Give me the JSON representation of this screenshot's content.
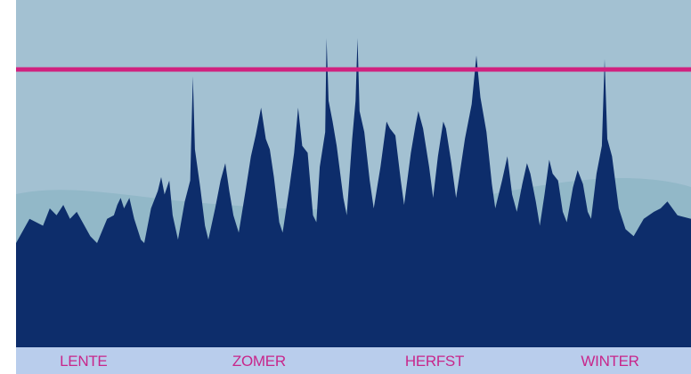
{
  "colors": {
    "sky": "#a3c1d2",
    "hills": "#92b8c8",
    "area": "#0d2d6b",
    "threshold": "#d0217f",
    "season_bar": "#b9cdec",
    "season_text": "#c8268b"
  },
  "chart_data": {
    "type": "area",
    "x_domain": [
      0,
      100
    ],
    "y_domain": [
      0,
      100
    ],
    "categories": [
      "LENTE",
      "ZOMER",
      "HERFST",
      "WINTER"
    ],
    "category_positions": [
      10,
      36,
      62,
      88
    ],
    "threshold": 80,
    "grid": false,
    "legend": "none",
    "series": [
      {
        "points": [
          [
            0,
            30
          ],
          [
            2,
            37
          ],
          [
            4,
            35
          ],
          [
            5,
            40
          ],
          [
            6,
            38
          ],
          [
            7,
            41
          ],
          [
            8,
            37
          ],
          [
            9,
            39
          ],
          [
            11,
            32
          ],
          [
            12,
            30
          ],
          [
            13.5,
            37
          ],
          [
            14.5,
            38
          ],
          [
            15,
            41
          ],
          [
            15.5,
            43
          ],
          [
            16,
            40
          ],
          [
            16.8,
            43
          ],
          [
            17.5,
            37
          ],
          [
            18.5,
            31
          ],
          [
            19,
            30
          ],
          [
            20,
            40
          ],
          [
            21,
            45
          ],
          [
            21.5,
            49
          ],
          [
            22,
            44
          ],
          [
            22.7,
            48
          ],
          [
            23.2,
            38
          ],
          [
            24,
            31
          ],
          [
            25,
            42
          ],
          [
            25.8,
            48
          ],
          [
            26.2,
            78
          ],
          [
            26.5,
            57
          ],
          [
            27.3,
            46
          ],
          [
            28,
            35
          ],
          [
            28.5,
            31
          ],
          [
            29.5,
            40
          ],
          [
            30.3,
            48
          ],
          [
            31,
            53
          ],
          [
            31.6,
            45
          ],
          [
            32.2,
            38
          ],
          [
            33,
            33
          ],
          [
            34,
            45
          ],
          [
            34.8,
            55
          ],
          [
            35.5,
            61
          ],
          [
            36.3,
            69
          ],
          [
            37,
            60
          ],
          [
            37.6,
            57
          ],
          [
            38.2,
            49
          ],
          [
            39,
            36
          ],
          [
            39.5,
            33
          ],
          [
            40.5,
            46
          ],
          [
            41.2,
            56
          ],
          [
            41.8,
            69
          ],
          [
            42.4,
            58
          ],
          [
            43.2,
            56
          ],
          [
            44,
            38
          ],
          [
            44.5,
            36
          ],
          [
            45,
            52
          ],
          [
            45.8,
            62
          ],
          [
            46,
            89
          ],
          [
            46.3,
            71
          ],
          [
            46.9,
            65
          ],
          [
            47.5,
            58
          ],
          [
            48.5,
            43
          ],
          [
            49,
            38
          ],
          [
            49.8,
            60
          ],
          [
            50.3,
            71
          ],
          [
            50.6,
            89
          ],
          [
            50.9,
            68
          ],
          [
            51.6,
            62
          ],
          [
            52.4,
            48
          ],
          [
            53,
            40
          ],
          [
            54,
            52
          ],
          [
            54.9,
            65
          ],
          [
            55.4,
            63
          ],
          [
            56.2,
            61
          ],
          [
            57,
            48
          ],
          [
            57.5,
            41
          ],
          [
            58.5,
            56
          ],
          [
            59.2,
            64
          ],
          [
            59.6,
            68
          ],
          [
            60.3,
            63
          ],
          [
            61.2,
            52
          ],
          [
            61.8,
            43
          ],
          [
            62.5,
            55
          ],
          [
            63.3,
            65
          ],
          [
            63.7,
            63
          ],
          [
            64.5,
            53
          ],
          [
            65.2,
            43
          ],
          [
            66.5,
            60
          ],
          [
            67.5,
            70
          ],
          [
            68.2,
            84
          ],
          [
            68.8,
            72
          ],
          [
            69.7,
            62
          ],
          [
            70.5,
            47
          ],
          [
            71,
            40
          ],
          [
            72,
            48
          ],
          [
            72.8,
            55
          ],
          [
            73.5,
            44
          ],
          [
            74.2,
            39
          ],
          [
            75,
            47
          ],
          [
            75.7,
            53
          ],
          [
            76.2,
            50
          ],
          [
            77,
            42
          ],
          [
            77.6,
            35
          ],
          [
            78.3,
            44
          ],
          [
            79,
            54
          ],
          [
            79.5,
            50
          ],
          [
            80.3,
            48
          ],
          [
            81,
            39
          ],
          [
            81.6,
            36
          ],
          [
            82.5,
            46
          ],
          [
            83.2,
            51
          ],
          [
            84,
            47
          ],
          [
            84.7,
            39
          ],
          [
            85.2,
            37
          ],
          [
            86,
            50
          ],
          [
            86.8,
            58
          ],
          [
            87.2,
            83
          ],
          [
            87.6,
            60
          ],
          [
            88.3,
            55
          ],
          [
            89.3,
            40
          ],
          [
            90.3,
            34
          ],
          [
            91.5,
            32
          ],
          [
            93,
            37
          ],
          [
            94.5,
            39
          ],
          [
            95.5,
            40
          ],
          [
            96.5,
            42
          ],
          [
            98,
            38
          ],
          [
            100,
            37
          ]
        ]
      }
    ]
  }
}
